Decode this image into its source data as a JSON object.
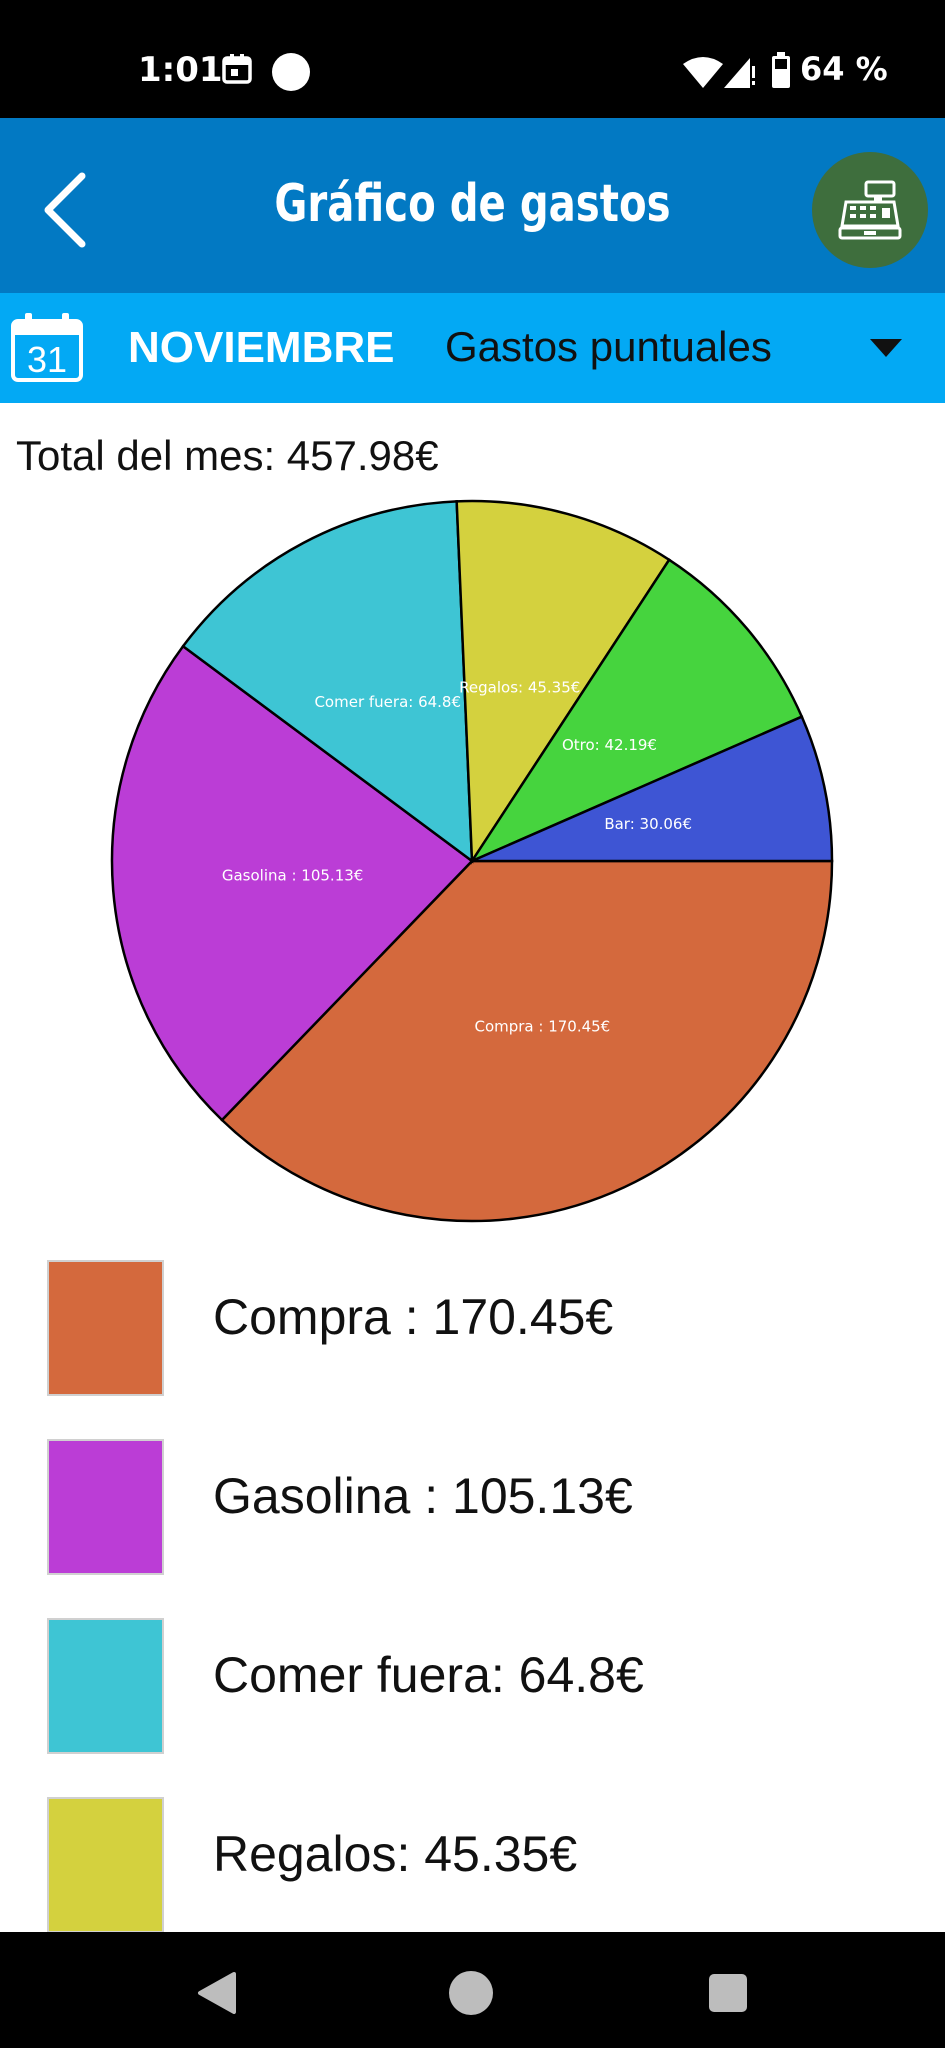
{
  "status_bar": {
    "time": "1:01",
    "battery": "64 %",
    "icons": [
      "calendar-icon",
      "dot-icon",
      "wifi-icon",
      "signal-icon",
      "battery-icon"
    ]
  },
  "app_bar": {
    "title": "Gráfico de gastos",
    "back_icon": "chevron-left-icon",
    "action_icon": "cash-register-icon",
    "color": "#0279c3",
    "action_color": "#3e6e3d"
  },
  "filter_bar": {
    "calendar_day": "31",
    "month": "NOVIEMBRE",
    "expense_type": "Gastos puntuales",
    "color": "#03a9f4"
  },
  "summary": {
    "total": "Total del mes: 457.98€"
  },
  "chart_data": {
    "type": "pie",
    "slices": [
      {
        "label": "Compra : 170.45€",
        "value": 170.45,
        "color": "#d4693d"
      },
      {
        "label": "Gasolina : 105.13€",
        "value": 105.13,
        "color": "#bb3dd6"
      },
      {
        "label": "Comer fuera: 64.8€",
        "value": 64.8,
        "color": "#3ec5d4"
      },
      {
        "label": "Regalos: 45.35€",
        "value": 45.35,
        "color": "#d4d13e"
      },
      {
        "label": "Otro: 42.19€",
        "value": 42.19,
        "color": "#46d43e"
      },
      {
        "label": "Bar: 30.06€",
        "value": 30.06,
        "color": "#3e55d4"
      }
    ]
  },
  "legend": {
    "items": [
      {
        "label": "Compra : 170.45€",
        "color": "#d4693d"
      },
      {
        "label": "Gasolina : 105.13€",
        "color": "#bb3dd6"
      },
      {
        "label": "Comer fuera: 64.8€",
        "color": "#3ec5d4"
      },
      {
        "label": "Regalos: 45.35€",
        "color": "#d4d13e"
      }
    ]
  },
  "nav_bar": {
    "icons": [
      "nav-back-icon",
      "nav-home-icon",
      "nav-recent-icon"
    ]
  }
}
